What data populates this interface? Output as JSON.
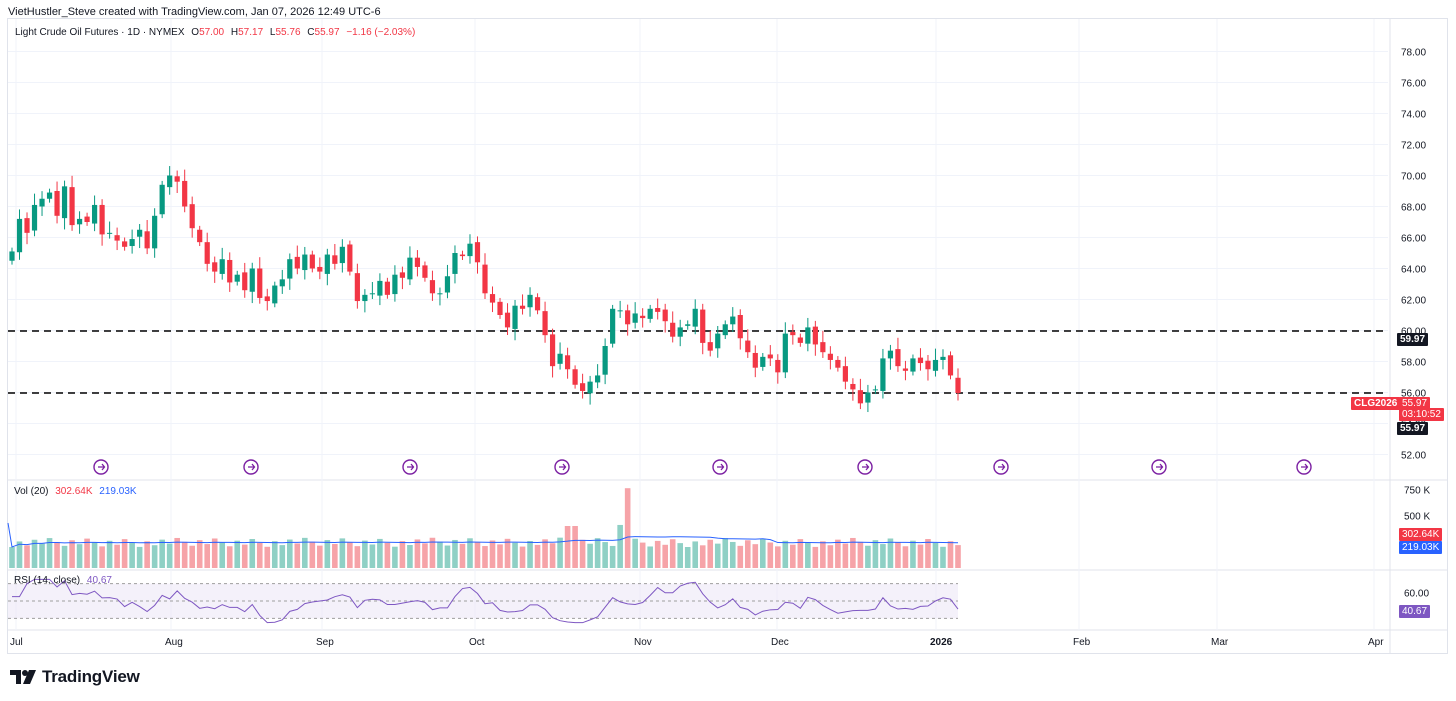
{
  "header": {
    "attribution": "VietHustler_Steve created with TradingView.com, Jan 07, 2026 12:49 UTC-6"
  },
  "legend": {
    "symbol": "Light Crude Oil Futures · 1D · NYMEX",
    "o_label": "O",
    "o_value": "57.00",
    "h_label": "H",
    "h_value": "57.17",
    "l_label": "L",
    "l_value": "55.76",
    "c_label": "C",
    "c_value": "55.97",
    "change": "−1.16 (−2.03%)"
  },
  "volume_legend": {
    "name": "Vol (20)",
    "value": "302.64K",
    "ma_value": "219.03K"
  },
  "rsi_legend": {
    "name": "RSI (14, close)",
    "value": "40.67"
  },
  "tags": {
    "resistance": "59.97",
    "symbol_tag": "CLG2026",
    "last_price": "55.97",
    "countdown": "03:10:52",
    "support": "55.97",
    "vol": "302.64K",
    "vol_ma": "219.03K",
    "rsi": "40.67"
  },
  "brand": {
    "name": "TradingView"
  },
  "colors": {
    "up": "#089981",
    "down": "#f23645",
    "rsi": "#7e57c2",
    "vol_ma": "#2962ff",
    "events": "#7b1fa2"
  },
  "chart_data": {
    "type": "candlestick",
    "title": "Light Crude Oil Futures · 1D · NYMEX",
    "x_tick_labels": [
      "Jul",
      "Aug",
      "Sep",
      "Oct",
      "Nov",
      "Dec",
      "2026",
      "Feb",
      "Mar",
      "Apr"
    ],
    "price_axis": {
      "ylim": [
        51,
        79
      ],
      "ticks": [
        "78.00",
        "76.00",
        "74.00",
        "72.00",
        "70.00",
        "68.00",
        "66.00",
        "64.00",
        "62.00",
        "60.00",
        "58.00",
        "56.00",
        "54.00",
        "52.00"
      ]
    },
    "horizontal_lines": [
      59.97,
      55.97
    ],
    "series": [
      {
        "name": "Light Crude Oil Futures",
        "close": [
          65.1,
          67.2,
          66.3,
          68.1,
          68.5,
          68.9,
          67.4,
          69.3,
          66.8,
          67.2,
          67.0,
          68.1,
          66.2,
          66.3,
          65.8,
          65.4,
          65.9,
          66.5,
          65.3,
          67.4,
          69.4,
          70.0,
          69.6,
          68.0,
          66.6,
          65.7,
          64.3,
          63.8,
          64.6,
          63.1,
          63.6,
          62.6,
          64.0,
          62.1,
          61.9,
          62.9,
          63.3,
          64.6,
          64.0,
          64.9,
          64.0,
          63.8,
          64.9,
          64.3,
          65.4,
          63.8,
          61.9,
          62.3,
          62.4,
          63.2,
          62.3,
          63.6,
          63.4,
          64.7,
          64.1,
          63.4,
          62.4,
          62.4,
          63.5,
          65.0,
          64.8,
          65.6,
          64.4,
          62.4,
          61.8,
          61.0,
          60.2,
          61.6,
          61.4,
          62.3,
          61.3,
          59.7,
          57.7,
          58.5,
          57.5,
          56.5,
          56.1,
          56.7,
          57.1,
          59.0,
          61.4,
          61.3,
          60.4,
          61.1,
          60.8,
          61.4,
          61.2,
          60.6,
          59.6,
          60.2,
          60.4,
          61.4,
          59.2,
          58.7,
          59.8,
          60.4,
          60.9,
          59.5,
          58.6,
          57.6,
          58.3,
          58.2,
          57.3,
          59.8,
          59.7,
          59.2,
          60.2,
          59.1,
          58.6,
          58.1,
          57.6,
          56.7,
          56.2,
          55.3,
          56.0,
          56.2,
          58.2,
          58.7,
          57.7,
          57.4,
          58.2,
          57.9,
          57.5,
          58.1,
          58.3,
          57.1,
          55.97
        ]
      }
    ],
    "volume": {
      "name": "Vol (20)",
      "last": "302.64K",
      "ma": "219.03K",
      "ticks": [
        "750 K",
        "500 K"
      ]
    },
    "rsi": {
      "name": "RSI (14, close)",
      "last": 40.67,
      "ticks": [
        "60.00"
      ],
      "bands": [
        70,
        50,
        30
      ]
    }
  }
}
